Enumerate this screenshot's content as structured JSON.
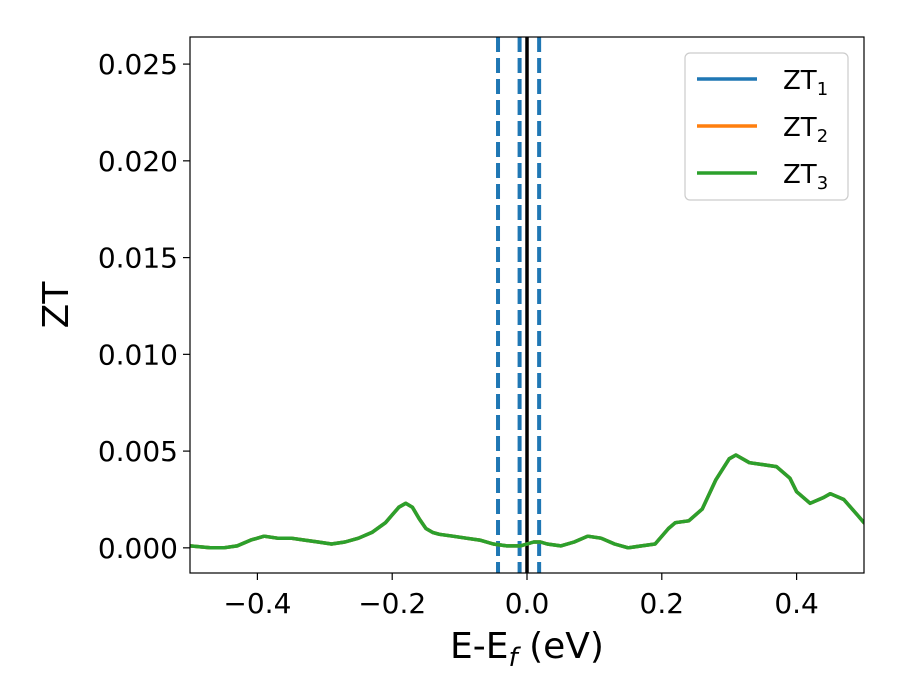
{
  "chart_data": {
    "type": "line",
    "xlabel": "E-E",
    "xlabel_sub": "f",
    "xlabel_unit": " (eV)",
    "ylabel": "ZT",
    "xlim": [
      -0.5,
      0.5
    ],
    "ylim": [
      -0.0013,
      0.0264
    ],
    "xticks": [
      -0.4,
      -0.2,
      0.0,
      0.2,
      0.4
    ],
    "xtick_labels": [
      "−0.4",
      "−0.2",
      "0.0",
      "0.2",
      "0.4"
    ],
    "yticks": [
      0.0,
      0.005,
      0.01,
      0.015,
      0.02,
      0.025
    ],
    "ytick_labels": [
      "0.000",
      "0.005",
      "0.010",
      "0.015",
      "0.020",
      "0.025"
    ],
    "grid": false,
    "legend_position": "top-right",
    "vertical_lines": [
      {
        "x": -0.043,
        "style": "dashed",
        "color": "#1f77b4"
      },
      {
        "x": -0.011,
        "style": "dashed",
        "color": "#1f77b4"
      },
      {
        "x": 0.018,
        "style": "dashed",
        "color": "#1f77b4"
      },
      {
        "x": 0.0,
        "style": "solid",
        "color": "#000000"
      }
    ],
    "x": [
      -0.5,
      -0.47,
      -0.45,
      -0.43,
      -0.41,
      -0.39,
      -0.37,
      -0.35,
      -0.33,
      -0.31,
      -0.29,
      -0.27,
      -0.25,
      -0.23,
      -0.21,
      -0.2,
      -0.19,
      -0.18,
      -0.17,
      -0.16,
      -0.15,
      -0.14,
      -0.13,
      -0.11,
      -0.09,
      -0.07,
      -0.05,
      -0.03,
      -0.01,
      0.0,
      0.01,
      0.02,
      0.03,
      0.05,
      0.07,
      0.09,
      0.11,
      0.13,
      0.15,
      0.17,
      0.19,
      0.21,
      0.22,
      0.24,
      0.26,
      0.28,
      0.3,
      0.31,
      0.33,
      0.35,
      0.37,
      0.39,
      0.4,
      0.42,
      0.44,
      0.45,
      0.47,
      0.49,
      0.5
    ],
    "series": [
      {
        "name": "ZT",
        "name_sub": "1",
        "color": "#1f77b4",
        "values": [
          0.0001,
          0.0,
          0.0,
          0.0001,
          0.0004,
          0.0006,
          0.0005,
          0.0005,
          0.0004,
          0.0003,
          0.0002,
          0.0003,
          0.0005,
          0.0008,
          0.0013,
          0.0017,
          0.0021,
          0.0023,
          0.0021,
          0.0015,
          0.001,
          0.0008,
          0.0007,
          0.0006,
          0.0005,
          0.0004,
          0.0002,
          0.0001,
          0.0001,
          0.0002,
          0.0003,
          0.0003,
          0.0002,
          0.0001,
          0.0003,
          0.0006,
          0.0005,
          0.0002,
          0.0,
          0.0001,
          0.0002,
          0.001,
          0.0013,
          0.0014,
          0.002,
          0.0035,
          0.0046,
          0.0048,
          0.0044,
          0.0043,
          0.0042,
          0.0036,
          0.0029,
          0.0023,
          0.0026,
          0.0028,
          0.0025,
          0.0017,
          0.0013
        ]
      },
      {
        "name": "ZT",
        "name_sub": "2",
        "color": "#ff7f0e",
        "values": [
          0.0001,
          0.0,
          0.0,
          0.0001,
          0.0004,
          0.0006,
          0.0005,
          0.0005,
          0.0004,
          0.0003,
          0.0002,
          0.0003,
          0.0005,
          0.0008,
          0.0013,
          0.0017,
          0.0021,
          0.0023,
          0.0021,
          0.0015,
          0.001,
          0.0008,
          0.0007,
          0.0006,
          0.0005,
          0.0004,
          0.0002,
          0.0001,
          0.0001,
          0.0002,
          0.0003,
          0.0003,
          0.0002,
          0.0001,
          0.0003,
          0.0006,
          0.0005,
          0.0002,
          0.0,
          0.0001,
          0.0002,
          0.001,
          0.0013,
          0.0014,
          0.002,
          0.0035,
          0.0046,
          0.0048,
          0.0044,
          0.0043,
          0.0042,
          0.0036,
          0.0029,
          0.0023,
          0.0026,
          0.0028,
          0.0025,
          0.0017,
          0.0013
        ]
      },
      {
        "name": "ZT",
        "name_sub": "3",
        "color": "#2ca02c",
        "values": [
          0.0001,
          0.0,
          0.0,
          0.0001,
          0.0004,
          0.0006,
          0.0005,
          0.0005,
          0.0004,
          0.0003,
          0.0002,
          0.0003,
          0.0005,
          0.0008,
          0.0013,
          0.0017,
          0.0021,
          0.0023,
          0.0021,
          0.0015,
          0.001,
          0.0008,
          0.0007,
          0.0006,
          0.0005,
          0.0004,
          0.0002,
          0.0001,
          0.0001,
          0.0002,
          0.0003,
          0.0003,
          0.0002,
          0.0001,
          0.0003,
          0.0006,
          0.0005,
          0.0002,
          0.0,
          0.0001,
          0.0002,
          0.001,
          0.0013,
          0.0014,
          0.002,
          0.0035,
          0.0046,
          0.0048,
          0.0044,
          0.0043,
          0.0042,
          0.0036,
          0.0029,
          0.0023,
          0.0026,
          0.0028,
          0.0025,
          0.0017,
          0.0013
        ]
      }
    ]
  }
}
